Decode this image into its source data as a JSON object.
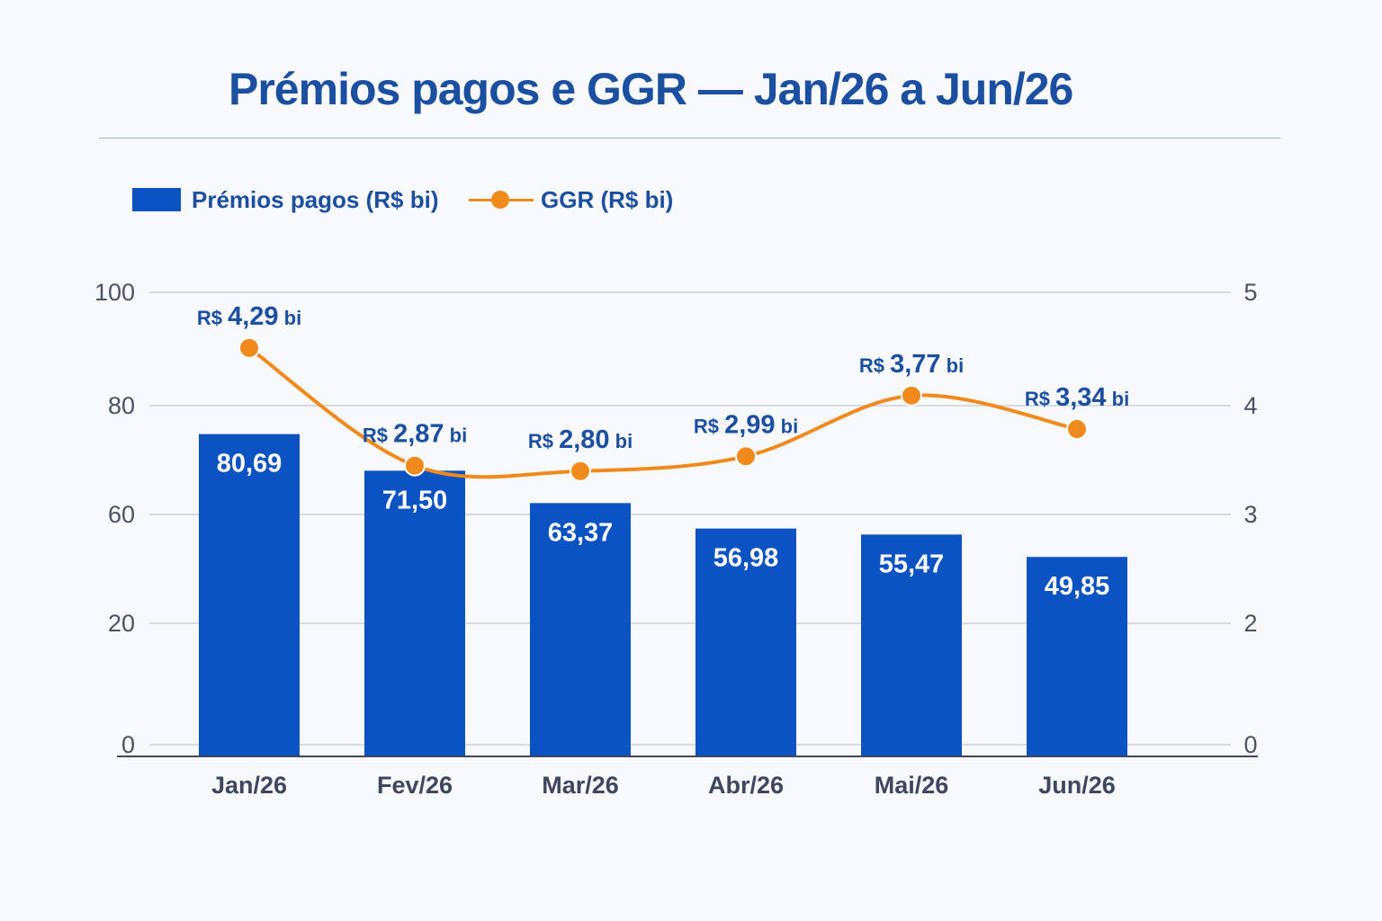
{
  "chart_data": {
    "type": "bar",
    "title": "Prémios pagos e GGR — Jan/26 a Jun/26",
    "categories": [
      "Jan/26",
      "Fev/26",
      "Mar/26",
      "Abr/26",
      "Mai/26",
      "Jun/26"
    ],
    "series": [
      {
        "name": "Prémios pagos (R$ bi)",
        "type": "bar",
        "axis": "left",
        "values": [
          80.69,
          71.5,
          63.37,
          56.98,
          55.47,
          49.85
        ],
        "labels": [
          "80,69",
          "71,50",
          "63,37",
          "56,98",
          "55,47",
          "49,85"
        ],
        "color": "#0b52c2"
      },
      {
        "name": "GGR (R$ bi)",
        "type": "line",
        "axis": "right",
        "values": [
          4.29,
          2.87,
          2.8,
          2.99,
          3.77,
          3.34
        ],
        "labels": [
          {
            "prefix": "R$",
            "value": "4,29",
            "suffix": "bi"
          },
          {
            "prefix": "R$",
            "value": "2,87",
            "suffix": "bi"
          },
          {
            "prefix": "R$",
            "value": "2,80",
            "suffix": "bi"
          },
          {
            "prefix": "R$",
            "value": "2,99",
            "suffix": "bi"
          },
          {
            "prefix": "R$",
            "value": "3,77",
            "suffix": "bi"
          },
          {
            "prefix": "R$",
            "value": "3,34",
            "suffix": "bi"
          }
        ],
        "color": "#f08a1c"
      }
    ],
    "y_left_ticks": [
      "100",
      "80",
      "60",
      "20",
      "0"
    ],
    "y_right_ticks": [
      "5",
      "4",
      "3",
      "2",
      "0"
    ],
    "ylim_left": [
      0,
      100
    ],
    "ylim_right": [
      0,
      5
    ],
    "grid": true,
    "legend_position": "top-left"
  },
  "colors": {
    "title": "#1b4fa0",
    "bar": "#0b52c2",
    "line": "#f08a1c",
    "label_text": "#1b4fa0",
    "axis_text": "#4a5366",
    "grid": "#c9cfdc"
  }
}
